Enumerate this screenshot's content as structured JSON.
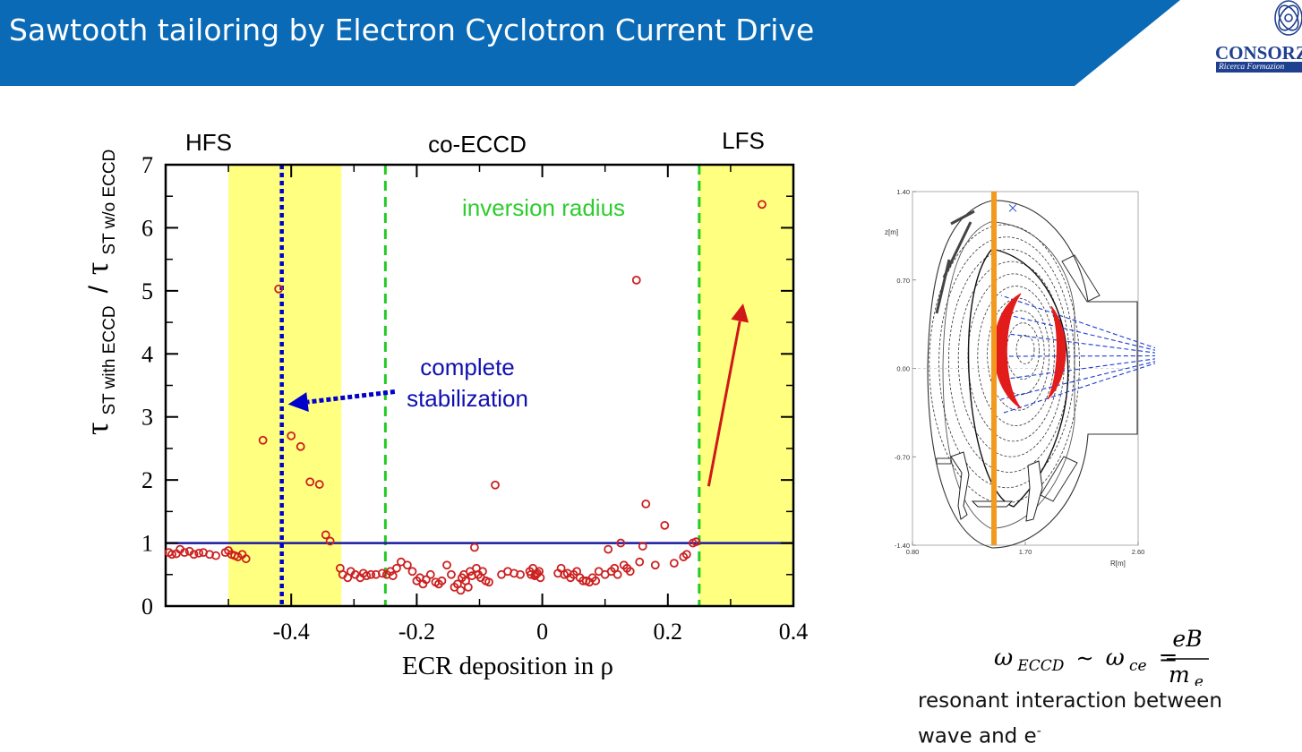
{
  "slide": {
    "title": "Sawtooth tailoring by Electron Cyclotron Current Drive",
    "logo_name": "CONSORZ",
    "logo_subtitle": "Ricerca Formazion"
  },
  "colors": {
    "header_blue": "#0a6ab6",
    "highlight_yellow": "#ffff80",
    "marker_red": "#cc2020",
    "line_blue": "#1a1aa0",
    "dotted_blue": "#0000cc",
    "dashed_green": "#22cc22",
    "arrow_red": "#d01818",
    "orange_chord": "#f29a1e"
  },
  "chart_data": [
    {
      "type": "scatter",
      "xlabel": "ECR deposition in ρ",
      "ylabel": {
        "tau1": "τ",
        "sub1": "ST with ECCD",
        "slash": "/",
        "tau2": "τ",
        "sub2": "ST w/o ECCD"
      },
      "xlim": [
        -0.6,
        0.4
      ],
      "ylim": [
        0,
        7
      ],
      "xticks": [
        -0.4,
        -0.2,
        0,
        0.2,
        0.4
      ],
      "xtick_labels": [
        "-0.4",
        "-0.2",
        "0",
        "0.2",
        "0.4"
      ],
      "yticks": [
        0,
        1,
        2,
        3,
        4,
        5,
        6,
        7
      ],
      "ytick_labels": [
        "0",
        "1",
        "2",
        "3",
        "4",
        "5",
        "6",
        "7"
      ],
      "regions": [
        {
          "name": "HFS",
          "x": [
            -0.5,
            -0.32
          ]
        },
        {
          "name": "LFS",
          "x": [
            0.25,
            0.4
          ]
        }
      ],
      "region_labels": {
        "hfs": "HFS",
        "co": "co-ECCD",
        "lfs": "LFS"
      },
      "hline_y": 1,
      "blue_dotted_x": -0.415,
      "green_dashed_x": [
        -0.25,
        0.25
      ],
      "annotations": {
        "inversion": "inversion radius",
        "complete": "complete",
        "stabilization": "stabilization"
      },
      "arrows": [
        {
          "name": "complete-stabilization-arrow",
          "from": [
            -0.235,
            3.4
          ],
          "to": [
            -0.405,
            3.2
          ]
        },
        {
          "name": "lfs-arrow",
          "from": [
            0.265,
            1.9
          ],
          "to": [
            0.32,
            4.8
          ]
        }
      ],
      "series": [
        {
          "x": [
            -0.595,
            -0.59,
            -0.583,
            -0.577,
            -0.57,
            -0.562,
            -0.555,
            -0.547,
            -0.54,
            -0.53,
            -0.52,
            -0.505,
            -0.5,
            -0.495,
            -0.49,
            -0.485,
            -0.478,
            -0.472,
            -0.445,
            -0.42,
            -0.4,
            -0.385,
            -0.37,
            -0.355,
            -0.345,
            -0.338,
            -0.322,
            -0.318,
            -0.31,
            -0.305,
            -0.298,
            -0.29,
            -0.285,
            -0.28,
            -0.273,
            -0.265,
            -0.255,
            -0.248,
            -0.242,
            -0.238,
            -0.232,
            -0.225,
            -0.215,
            -0.207,
            -0.2,
            -0.195,
            -0.19,
            -0.185,
            -0.178,
            -0.17,
            -0.165,
            -0.16,
            -0.152,
            -0.145,
            -0.14,
            -0.135,
            -0.13,
            -0.128,
            -0.125,
            -0.122,
            -0.118,
            -0.115,
            -0.112,
            -0.108,
            -0.105,
            -0.102,
            -0.098,
            -0.095,
            -0.09,
            -0.085,
            -0.075,
            -0.065,
            -0.055,
            -0.045,
            -0.035,
            -0.02,
            -0.018,
            -0.015,
            -0.012,
            -0.01,
            -0.008,
            -0.005,
            -0.003,
            0.025,
            0.03,
            0.035,
            0.04,
            0.045,
            0.05,
            0.055,
            0.06,
            0.065,
            0.07,
            0.075,
            0.08,
            0.085,
            0.09,
            0.1,
            0.105,
            0.11,
            0.115,
            0.12,
            0.125,
            0.13,
            0.135,
            0.14,
            0.15,
            0.155,
            0.16,
            0.165,
            0.18,
            0.195,
            0.21,
            0.225,
            0.23,
            0.24,
            0.245,
            0.35
          ],
          "y": [
            0.85,
            0.82,
            0.83,
            0.9,
            0.85,
            0.87,
            0.82,
            0.84,
            0.85,
            0.82,
            0.8,
            0.85,
            0.88,
            0.82,
            0.8,
            0.78,
            0.82,
            0.75,
            2.63,
            5.03,
            2.7,
            2.53,
            1.97,
            1.93,
            1.13,
            1.03,
            0.6,
            0.5,
            0.45,
            0.55,
            0.5,
            0.45,
            0.52,
            0.48,
            0.5,
            0.5,
            0.52,
            0.5,
            0.55,
            0.48,
            0.6,
            0.7,
            0.65,
            0.55,
            0.4,
            0.45,
            0.35,
            0.42,
            0.5,
            0.38,
            0.35,
            0.4,
            0.65,
            0.5,
            0.3,
            0.35,
            0.25,
            0.45,
            0.5,
            0.4,
            0.3,
            0.55,
            0.48,
            0.93,
            0.6,
            0.5,
            0.45,
            0.55,
            0.4,
            0.38,
            1.92,
            0.5,
            0.55,
            0.52,
            0.5,
            0.55,
            0.5,
            0.6,
            0.48,
            0.5,
            0.52,
            0.55,
            0.45,
            0.52,
            0.6,
            0.5,
            0.52,
            0.45,
            0.5,
            0.55,
            0.45,
            0.4,
            0.4,
            0.38,
            0.45,
            0.4,
            0.55,
            0.5,
            0.9,
            0.55,
            0.6,
            0.5,
            1.0,
            0.65,
            0.6,
            0.55,
            5.17,
            0.7,
            0.95,
            1.62,
            0.65,
            1.28,
            0.68,
            0.78,
            0.82,
            1.0,
            1.02,
            6.37
          ]
        }
      ]
    },
    {
      "type": "scatter",
      "xlabel": "R[m]",
      "ylabel": "z[m]",
      "xticks": [
        0.8,
        1.7,
        2.6
      ],
      "xtick_labels": [
        "0.80",
        "1.70",
        "2.60"
      ],
      "yticks": [
        -1.4,
        -0.7,
        0,
        0.7,
        1.4
      ],
      "ytick_labels": [
        "-1.40",
        "-0.70",
        "0.00",
        "0.70",
        "1.40"
      ],
      "xlim": [
        0.8,
        2.6
      ],
      "ylim": [
        -1.4,
        1.4
      ],
      "orange_chord_R": 1.45,
      "launcher": {
        "R": 2.92,
        "z": 0.1
      },
      "marker_x": {
        "R": 1.6,
        "z": 1.27
      },
      "magnetic_axis": {
        "R": 1.7,
        "z": 0.15
      }
    }
  ],
  "equation": {
    "omega": "ω",
    "sub_eccd": "ECCD",
    "sim": "∼",
    "sub_ce": "ce",
    "equals": "=",
    "numerator": "eB",
    "denom_m": "m",
    "denom_sub": "e"
  },
  "caption": {
    "line1": "resonant interaction between",
    "line2": "wave and e",
    "superscript": "-"
  }
}
